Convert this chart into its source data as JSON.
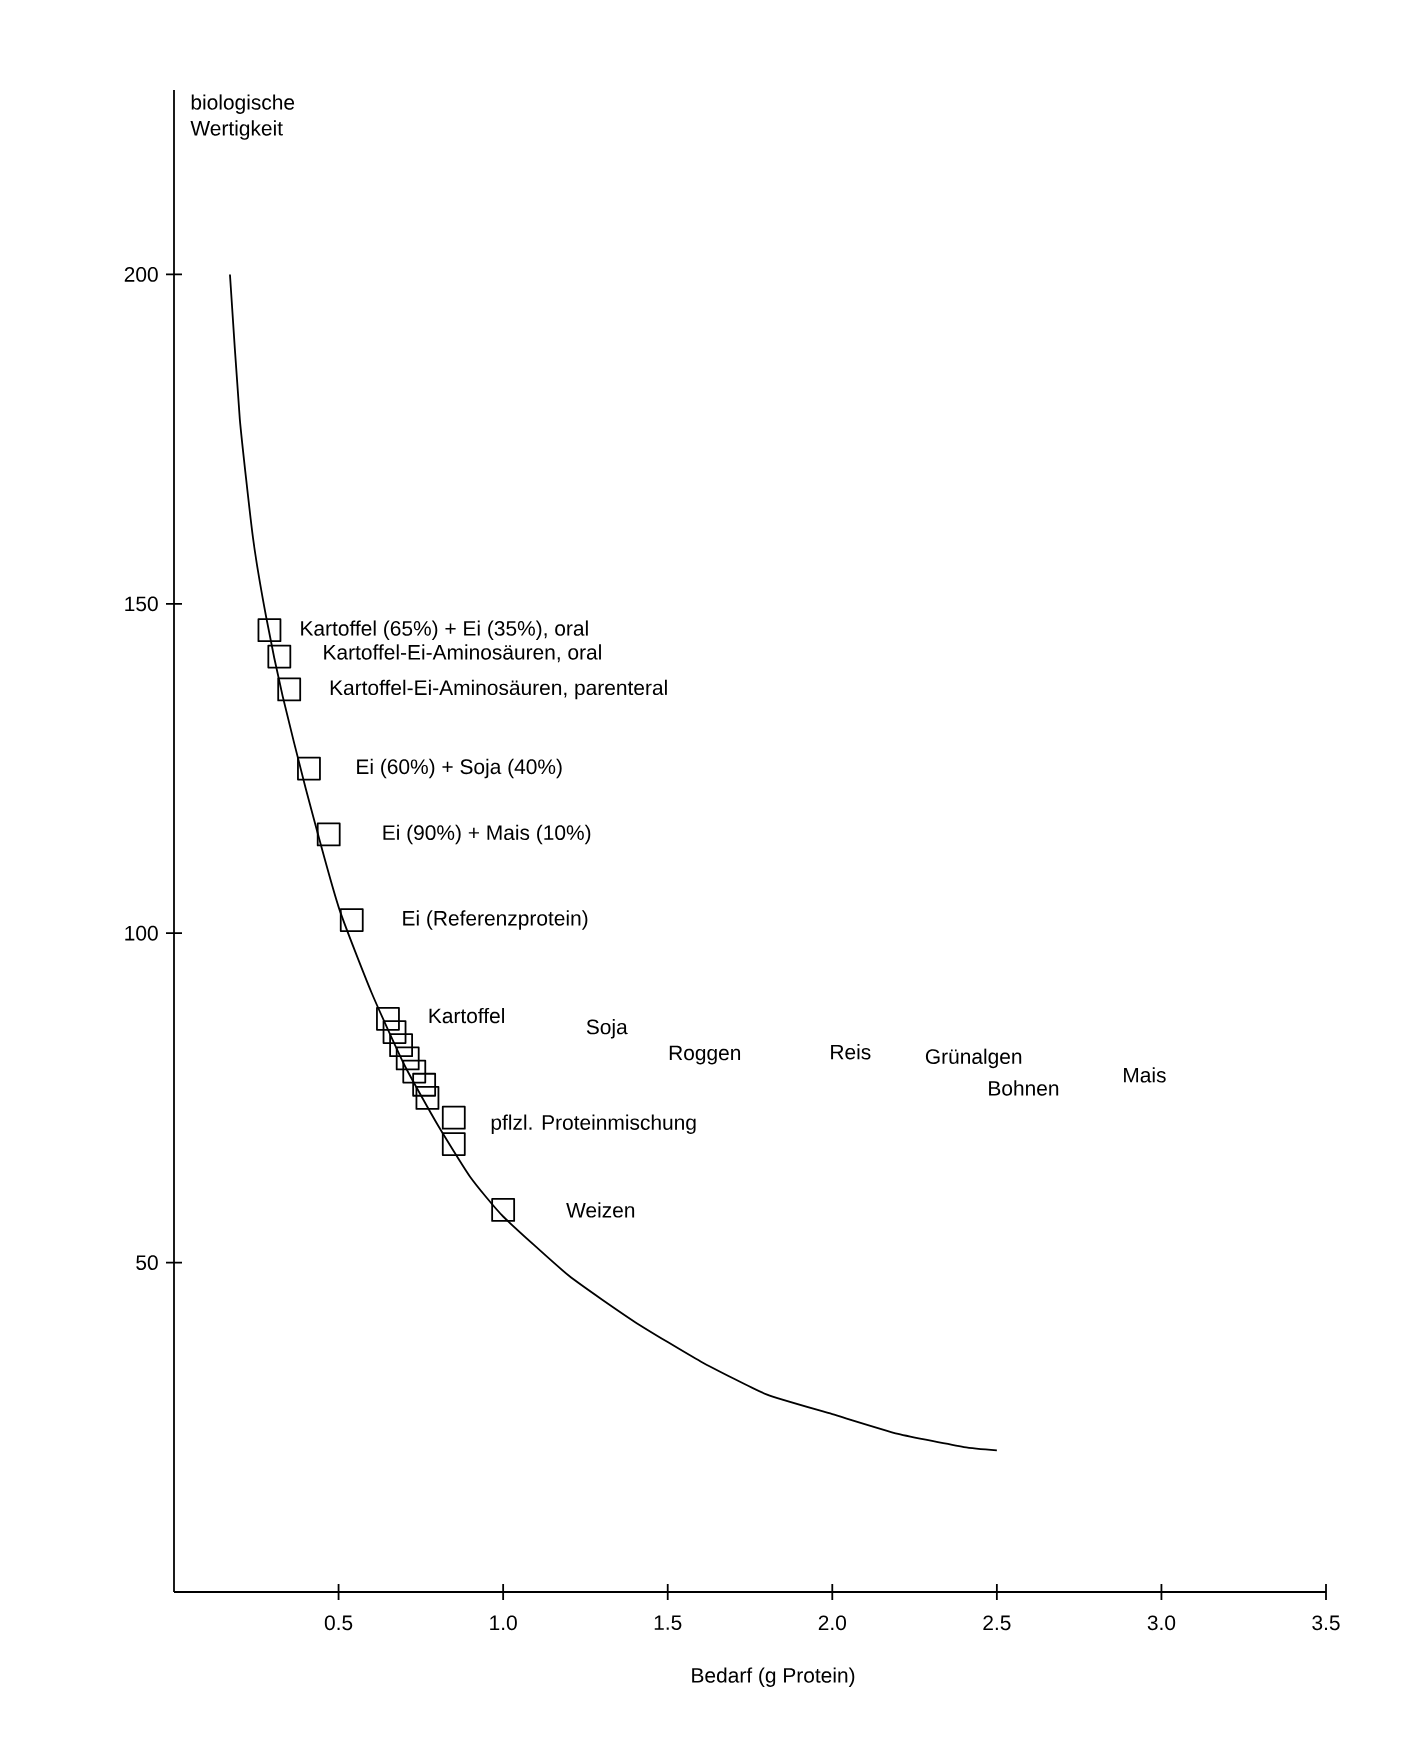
{
  "chart_data": {
    "type": "scatter",
    "xlabel": "Bedarf (g Protein)",
    "ylabel": "biologische Wertigkeit",
    "xlim": [
      0,
      3.5
    ],
    "ylim": [
      0,
      228
    ],
    "xticks": [
      0.5,
      {
        "value": 1,
        "label": "1.0"
      },
      1.5,
      {
        "value": 2,
        "label": "2.0"
      },
      2.5,
      {
        "value": 3,
        "label": "3.0"
      },
      3.5
    ],
    "yticks": [
      50,
      100,
      150,
      200
    ],
    "grid": false,
    "series": [
      {
        "type": "line",
        "color": "#000000",
        "line_style": "solid",
        "marker": "none",
        "x": [
          0.17,
          0.2,
          0.24,
          0.28,
          0.33,
          0.4,
          0.5,
          0.6,
          0.7,
          0.8,
          0.9,
          1.0,
          1.2,
          1.4,
          1.6,
          1.8,
          2.0,
          2.2,
          2.4,
          2.5
        ],
        "values": [
          200,
          178,
          160,
          148,
          136,
          122,
          104,
          91,
          80,
          71,
          63,
          57,
          48,
          41,
          35,
          30,
          27,
          24,
          22,
          21.5
        ]
      },
      {
        "color": "#000000",
        "marker": "square",
        "x": [
          0.29,
          0.32,
          0.35,
          0.41,
          0.47,
          0.54,
          0.65,
          0.67,
          0.69,
          0.71,
          0.73,
          0.76,
          0.77,
          0.85,
          0.85,
          1.0
        ],
        "values": [
          146,
          142,
          137,
          125,
          115,
          102,
          87,
          85,
          83,
          81,
          79,
          77,
          75,
          72,
          68,
          58
        ]
      }
    ],
    "annotations": [
      "Kartoffel (65%) + Ei (35%), oral",
      "Kartoffel-Ei-Aminosäuren, oral",
      "Kartoffel-Ei-Aminosäuren, parenteral",
      "Ei (60%) + Soja (40%)",
      "Ei (90%) + Mais (10%)",
      "Ei (Referenzprotein)",
      "Kartoffel",
      "Soja",
      "Roggen",
      "Reis",
      "Grünalgen",
      "Bohnen",
      "Mais",
      "pflzl. Proteinmischung",
      "Weizen"
    ]
  }
}
